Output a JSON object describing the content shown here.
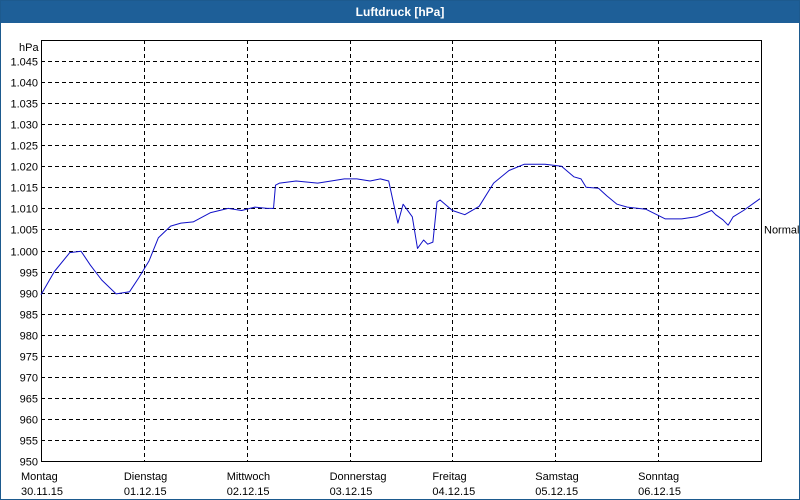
{
  "window": {
    "title": "Luftdruck [hPa]"
  },
  "chart_data": {
    "type": "line",
    "title": "Luftdruck [hPa]",
    "ylabel": "hPa",
    "ylim": [
      950,
      1050
    ],
    "yticks": [
      950,
      955,
      960,
      965,
      970,
      975,
      980,
      985,
      990,
      995,
      1000,
      1005,
      1010,
      1015,
      1020,
      1025,
      1030,
      1035,
      1040,
      1045
    ],
    "ytick_labels": [
      "950",
      "955",
      "960",
      "965",
      "970",
      "975",
      "980",
      "985",
      "990",
      "995",
      "1.000",
      "1.005",
      "1.010",
      "1.015",
      "1.020",
      "1.025",
      "1.030",
      "1.035",
      "1.040",
      "1.045"
    ],
    "xlim": [
      0,
      7.0
    ],
    "x_days": [
      {
        "day": "Montag",
        "date": "30.11.15"
      },
      {
        "day": "Dienstag",
        "date": "01.12.15"
      },
      {
        "day": "Mittwoch",
        "date": "02.12.15"
      },
      {
        "day": "Donnerstag",
        "date": "03.12.15"
      },
      {
        "day": "Freitag",
        "date": "04.12.15"
      },
      {
        "day": "Samstag",
        "date": "05.12.15"
      },
      {
        "day": "Sonntag",
        "date": "06.12.15"
      }
    ],
    "reference_line": {
      "label": "Normal",
      "value": 1005
    },
    "grid": true,
    "series": [
      {
        "color": "#1010c8",
        "x": [
          0,
          0.13,
          0.28,
          0.39,
          0.48,
          0.59,
          0.73,
          0.86,
          0.95,
          1.05,
          1.14,
          1.26,
          1.36,
          1.48,
          1.65,
          1.82,
          1.95,
          2.08,
          2.2,
          2.26,
          2.28,
          2.32,
          2.48,
          2.69,
          2.82,
          2.95,
          3.07,
          3.2,
          3.3,
          3.38,
          3.42,
          3.47,
          3.52,
          3.61,
          3.66,
          3.72,
          3.76,
          3.81,
          3.85,
          3.88,
          4.0,
          4.12,
          4.26,
          4.4,
          4.55,
          4.7,
          4.9,
          5.06,
          5.18,
          5.25,
          5.3,
          5.42,
          5.5,
          5.6,
          5.7,
          5.88,
          6.07,
          6.23,
          6.37,
          6.52,
          6.56,
          6.63,
          6.68,
          6.73,
          6.83,
          6.99
        ],
        "y": [
          989.5,
          995.0,
          999.5,
          999.8,
          996.5,
          993.0,
          989.7,
          990.2,
          993.5,
          997.5,
          1003.0,
          1005.8,
          1006.5,
          1006.8,
          1009.0,
          1010.0,
          1009.5,
          1010.3,
          1010.0,
          1010.0,
          1015.5,
          1016.0,
          1016.5,
          1016.0,
          1016.5,
          1017.0,
          1017.0,
          1016.5,
          1017.0,
          1016.5,
          1012.0,
          1006.5,
          1011.0,
          1008.0,
          1000.5,
          1002.5,
          1001.5,
          1002.0,
          1011.5,
          1012.0,
          1009.5,
          1008.5,
          1010.5,
          1016.0,
          1019.0,
          1020.5,
          1020.5,
          1020.0,
          1017.5,
          1017.0,
          1015.0,
          1014.8,
          1013.0,
          1011.0,
          1010.3,
          1009.8,
          1007.5,
          1007.5,
          1008.0,
          1009.5,
          1008.5,
          1007.3,
          1006.0,
          1008.0,
          1009.5,
          1012.3
        ]
      }
    ]
  }
}
